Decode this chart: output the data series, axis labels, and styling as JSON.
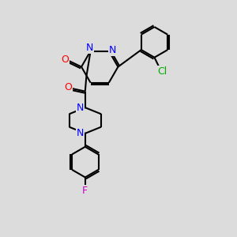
{
  "bg_color": "#dcdcdc",
  "atom_colors": {
    "N": "#0000ff",
    "O": "#ff0000",
    "Cl": "#00aa00",
    "F": "#cc00cc",
    "C": "#000000"
  },
  "bond_color": "#000000",
  "bond_width": 1.5
}
